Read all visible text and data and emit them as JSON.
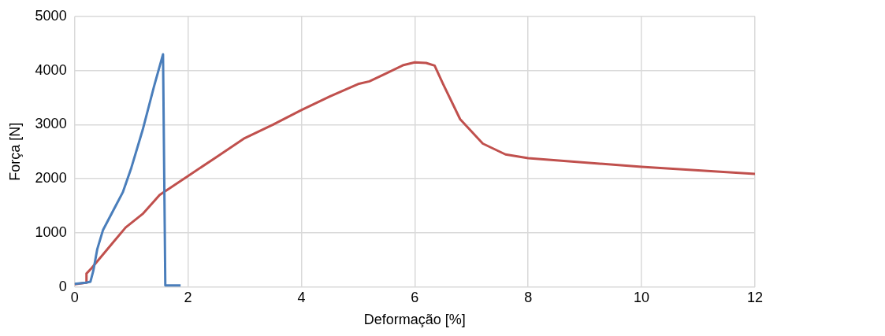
{
  "chart_data": {
    "type": "line",
    "xlabel": "Deformação [%]",
    "ylabel": "Força [N]",
    "xlim": [
      0,
      12
    ],
    "xticks": [
      0,
      2,
      4,
      6,
      8,
      10,
      12
    ],
    "ylim": [
      0,
      5000
    ],
    "yticks": [
      0,
      1000,
      2000,
      3000,
      4000,
      5000
    ],
    "grid": true,
    "marker": "none",
    "line_style": "solid",
    "series": [
      {
        "color": "#4a7ebb",
        "x": [
          0,
          0.2,
          0.28,
          0.33,
          0.4,
          0.5,
          0.6,
          0.7,
          0.85,
          1.0,
          1.2,
          1.4,
          1.56,
          1.6,
          1.87
        ],
        "values": [
          60,
          80,
          100,
          300,
          700,
          1050,
          1250,
          1450,
          1750,
          2200,
          2900,
          3700,
          4300,
          30,
          30
        ]
      },
      {
        "color": "#c0504d",
        "x": [
          0,
          0.2,
          0.21,
          0.3,
          0.5,
          0.7,
          0.9,
          1.2,
          1.5,
          2,
          2.5,
          3,
          3.5,
          4,
          4.5,
          5,
          5.2,
          5.5,
          5.8,
          6,
          6.2,
          6.35,
          6.5,
          6.8,
          7.2,
          7.6,
          8,
          10,
          12
        ],
        "values": [
          50,
          80,
          250,
          350,
          600,
          850,
          1100,
          1350,
          1700,
          2050,
          2400,
          2750,
          3000,
          3270,
          3520,
          3750,
          3800,
          3950,
          4100,
          4150,
          4140,
          4090,
          3750,
          3100,
          2650,
          2450,
          2380,
          2220,
          2090
        ]
      }
    ]
  }
}
